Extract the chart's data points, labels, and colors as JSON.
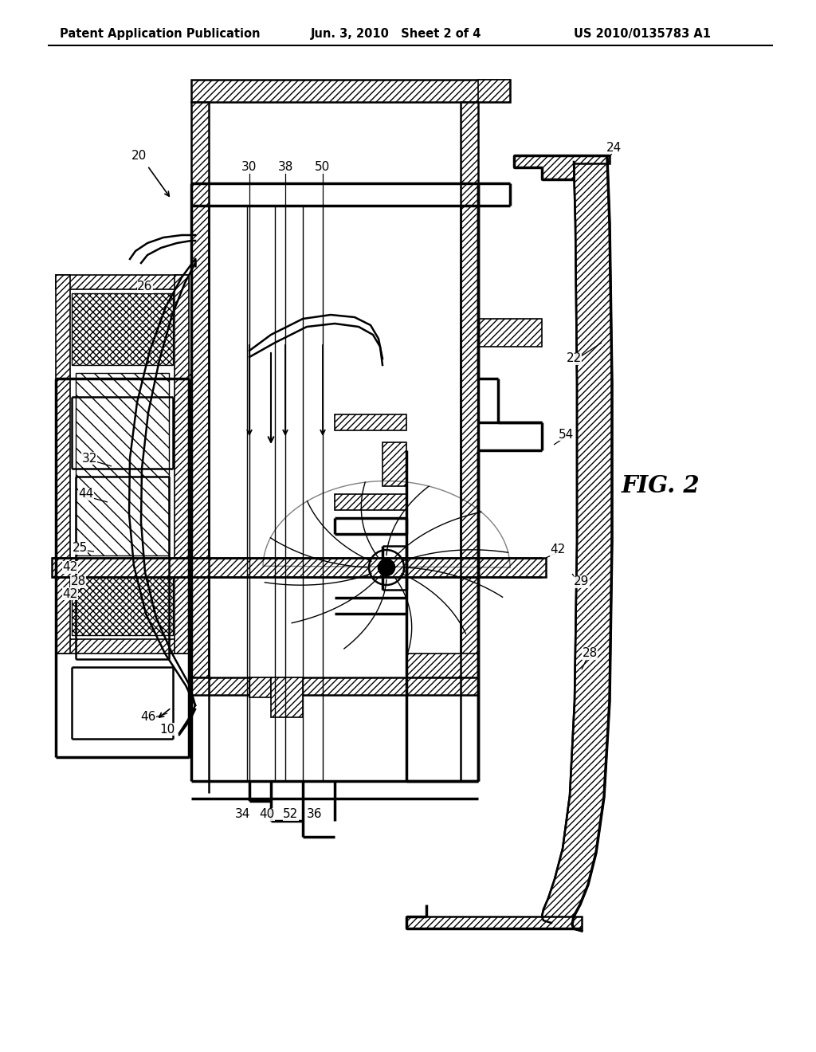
{
  "title_left": "Patent Application Publication",
  "title_center": "Jun. 3, 2010   Sheet 2 of 4",
  "title_right": "US 2010/0135783 A1",
  "fig_label": "FIG. 2",
  "background": "#ffffff",
  "line_color": "#000000"
}
